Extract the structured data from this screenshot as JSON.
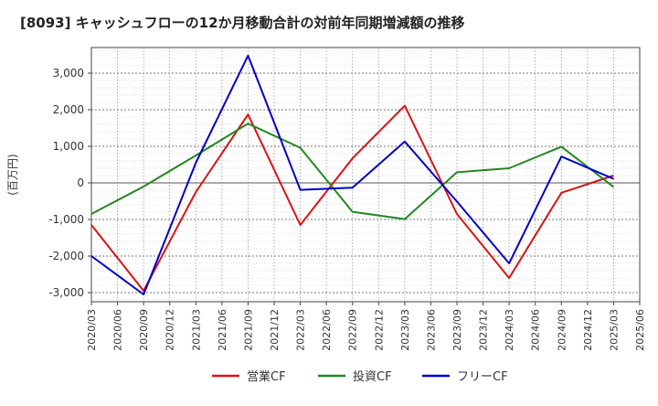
{
  "chart_data": {
    "type": "line",
    "title": "[8093]  キャッシュフローの12か月移動合計の対前年同期増減額の推移",
    "ylabel": "(百万円)",
    "xlabel": "",
    "ylim": [
      -3250,
      3700
    ],
    "yticks": [
      3000,
      2000,
      1000,
      0,
      -1000,
      -2000,
      -3000
    ],
    "ytick_labels": [
      "3,000",
      "2,000",
      "1,000",
      "0",
      "-1,000",
      "-2,000",
      "-3,000"
    ],
    "x": [
      "2020/03",
      "2020/06",
      "2020/09",
      "2020/12",
      "2021/03",
      "2021/06",
      "2021/09",
      "2021/12",
      "2022/03",
      "2022/06",
      "2022/09",
      "2022/12",
      "2023/03",
      "2023/06",
      "2023/09",
      "2023/12",
      "2024/03",
      "2024/06",
      "2024/09",
      "2024/12",
      "2025/03",
      "2025/06"
    ],
    "grid": true,
    "legend_position": "bottom",
    "series": [
      {
        "name": "営業CF",
        "color": "#dd1111",
        "values": [
          -1150,
          null,
          -2950,
          null,
          -250,
          null,
          1870,
          null,
          -1150,
          null,
          670,
          null,
          2110,
          null,
          -850,
          null,
          -2600,
          null,
          -270,
          null,
          200,
          null
        ]
      },
      {
        "name": "投資CF",
        "color": "#228822",
        "values": [
          -850,
          null,
          -100,
          null,
          750,
          null,
          1620,
          null,
          960,
          null,
          -790,
          null,
          -990,
          null,
          290,
          null,
          400,
          null,
          990,
          null,
          -110,
          null
        ]
      },
      {
        "name": "フリーCF",
        "color": "#0000cc",
        "values": [
          -2000,
          null,
          -3050,
          null,
          550,
          null,
          3480,
          null,
          -190,
          null,
          -130,
          null,
          1130,
          null,
          -510,
          null,
          -2200,
          null,
          720,
          null,
          110,
          null
        ]
      }
    ]
  }
}
